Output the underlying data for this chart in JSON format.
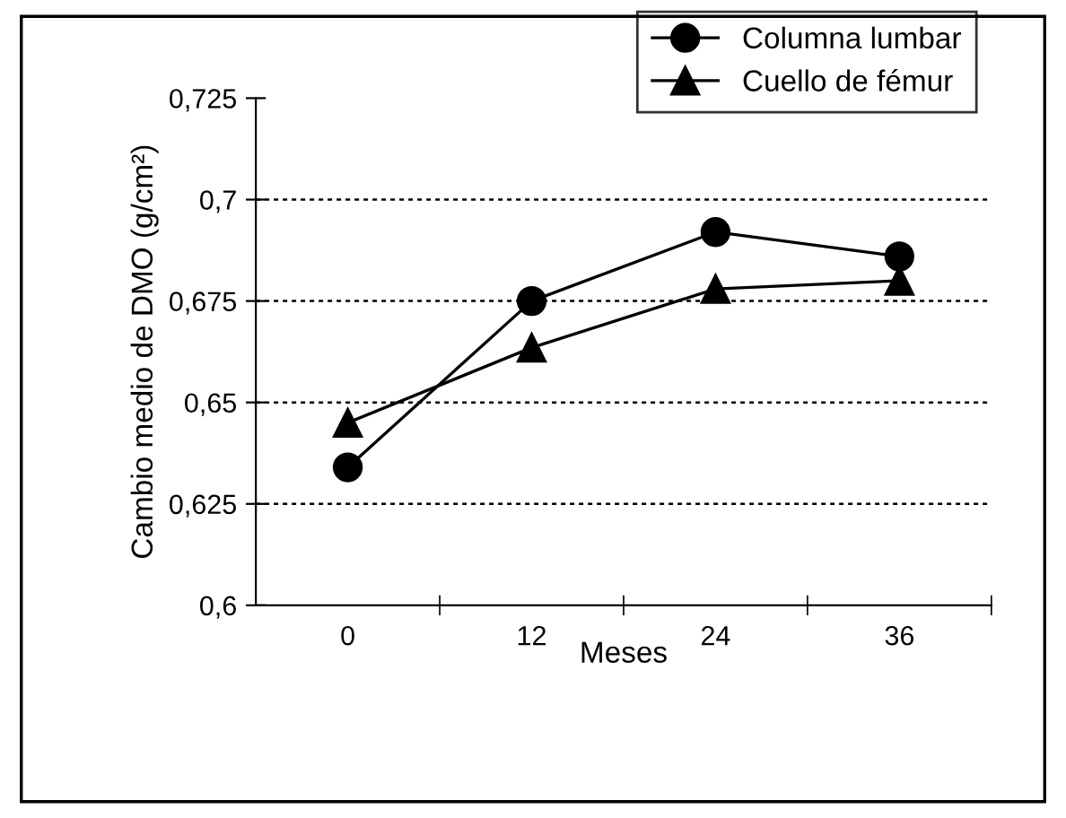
{
  "chart_data": {
    "type": "line",
    "xlabel": "Meses",
    "ylabel": "Cambio medio de DMO (g/cm²)",
    "categories": [
      "0",
      "12",
      "24",
      "36"
    ],
    "series": [
      {
        "name": "Columna lumbar",
        "color": "#000000",
        "marker": "circle",
        "values": [
          0.634,
          0.675,
          0.692,
          0.686
        ]
      },
      {
        "name": "Cuello de fémur",
        "color": "#000000",
        "marker": "triangle",
        "values": [
          0.645,
          0.6635,
          0.678,
          0.68
        ]
      }
    ],
    "ylim": [
      0.6,
      0.725
    ],
    "yticks": [
      {
        "value": 0.6,
        "label": "0,6"
      },
      {
        "value": 0.625,
        "label": "0,625"
      },
      {
        "value": 0.65,
        "label": "0,65"
      },
      {
        "value": 0.675,
        "label": "0,675"
      },
      {
        "value": 0.7,
        "label": "0,7"
      },
      {
        "value": 0.725,
        "label": "0,725"
      }
    ],
    "grid": "y",
    "legend": "top right",
    "line_style": "solid"
  }
}
